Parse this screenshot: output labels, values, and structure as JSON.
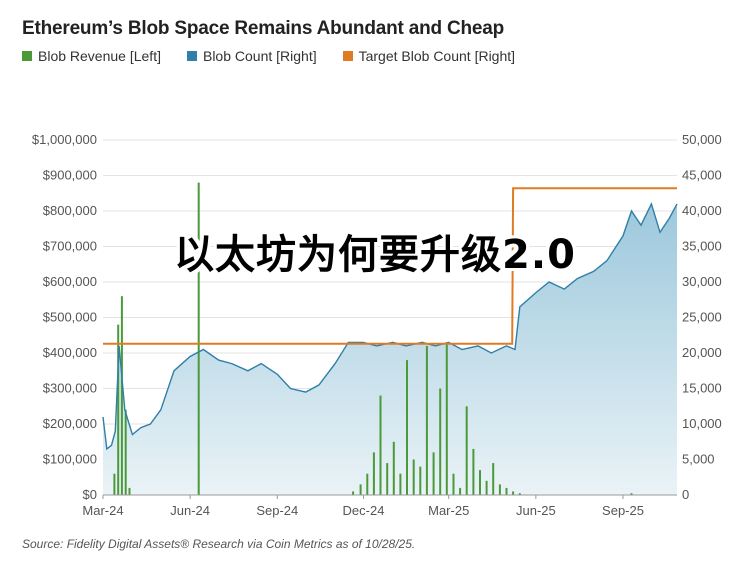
{
  "overlay_text": "以太坊为何要升级2.0",
  "source": "Source: Fidelity Digital Assets® Research via Coin Metrics as of 10/28/25.",
  "colors": {
    "revenue": "#4a9a3a",
    "blob_count_line": "#2f7fa8",
    "blob_count_fill_top": "#9cc8dc",
    "blob_count_fill_bottom": "#eaf3f7",
    "target": "#e07b24",
    "grid": "#e3e3e3"
  },
  "chart_data": {
    "type": "line",
    "title": "Ethereum’s Blob Space Remains Abundant and Cheap",
    "legend_position": "top-left",
    "grid": true,
    "x_tick_labels": [
      "Mar-24",
      "Jun-24",
      "Sep-24",
      "Dec-24",
      "Mar-25",
      "Jun-25",
      "Sep-25"
    ],
    "x_range": [
      "2024-03-01",
      "2025-10-28"
    ],
    "y_left": {
      "label": "",
      "ylim": [
        0,
        1000000
      ],
      "ticks": [
        "$0",
        "$100,000",
        "$200,000",
        "$300,000",
        "$400,000",
        "$500,000",
        "$600,000",
        "$700,000",
        "$800,000",
        "$900,000",
        "$1,000,000"
      ]
    },
    "y_right": {
      "label": "",
      "ylim": [
        0,
        50000
      ],
      "ticks": [
        "0",
        "5,000",
        "10,000",
        "15,000",
        "20,000",
        "25,000",
        "30,000",
        "35,000",
        "40,000",
        "45,000",
        "50,000"
      ]
    },
    "series": [
      {
        "name": "Blob Revenue [Left]",
        "type": "bar",
        "axis": "left",
        "x": [
          "2024-03-13",
          "2024-03-17",
          "2024-03-21",
          "2024-03-25",
          "2024-03-29",
          "2024-06-10",
          "2024-11-20",
          "2024-11-28",
          "2024-12-05",
          "2024-12-12",
          "2024-12-19",
          "2024-12-26",
          "2025-01-02",
          "2025-01-09",
          "2025-01-16",
          "2025-01-23",
          "2025-01-30",
          "2025-02-06",
          "2025-02-13",
          "2025-02-20",
          "2025-02-27",
          "2025-03-06",
          "2025-03-13",
          "2025-03-20",
          "2025-03-27",
          "2025-04-03",
          "2025-04-10",
          "2025-04-17",
          "2025-04-24",
          "2025-05-01",
          "2025-05-08",
          "2025-05-15",
          "2025-09-10"
        ],
        "values": [
          60000,
          480000,
          560000,
          240000,
          20000,
          880000,
          10000,
          30000,
          60000,
          120000,
          280000,
          90000,
          150000,
          60000,
          380000,
          100000,
          80000,
          420000,
          120000,
          300000,
          430000,
          60000,
          20000,
          250000,
          130000,
          70000,
          40000,
          90000,
          30000,
          20000,
          10000,
          5000,
          5000
        ]
      },
      {
        "name": "Blob Count [Right]",
        "type": "area",
        "axis": "right",
        "x": [
          "2024-03-01",
          "2024-03-05",
          "2024-03-10",
          "2024-03-14",
          "2024-03-18",
          "2024-03-24",
          "2024-04-01",
          "2024-04-10",
          "2024-04-20",
          "2024-05-01",
          "2024-05-15",
          "2024-06-01",
          "2024-06-15",
          "2024-07-01",
          "2024-07-15",
          "2024-08-01",
          "2024-08-15",
          "2024-09-01",
          "2024-09-15",
          "2024-10-01",
          "2024-10-15",
          "2024-11-01",
          "2024-11-15",
          "2024-12-01",
          "2024-12-15",
          "2025-01-01",
          "2025-01-15",
          "2025-02-01",
          "2025-02-15",
          "2025-03-01",
          "2025-03-15",
          "2025-04-01",
          "2025-04-15",
          "2025-05-01",
          "2025-05-10",
          "2025-05-15",
          "2025-06-01",
          "2025-06-15",
          "2025-07-01",
          "2025-07-15",
          "2025-08-01",
          "2025-08-15",
          "2025-09-01",
          "2025-09-10",
          "2025-09-20",
          "2025-10-01",
          "2025-10-10",
          "2025-10-20",
          "2025-10-28"
        ],
        "values": [
          11000,
          6500,
          7000,
          9000,
          21000,
          12000,
          8500,
          9500,
          10000,
          12000,
          17500,
          19500,
          20500,
          19000,
          18500,
          17500,
          18500,
          17000,
          15000,
          14500,
          15500,
          18500,
          21500,
          21500,
          21000,
          21500,
          21000,
          21500,
          21000,
          21500,
          20500,
          21000,
          20000,
          21000,
          20500,
          26500,
          28500,
          30000,
          29000,
          30500,
          31500,
          33000,
          36500,
          40000,
          38000,
          41000,
          37000,
          39000,
          41000
        ]
      },
      {
        "name": "Target Blob Count [Right]",
        "type": "line",
        "axis": "right",
        "x": [
          "2024-03-01",
          "2025-05-07",
          "2025-05-08",
          "2025-10-28"
        ],
        "values": [
          21300,
          21300,
          43200,
          43200
        ]
      }
    ]
  }
}
